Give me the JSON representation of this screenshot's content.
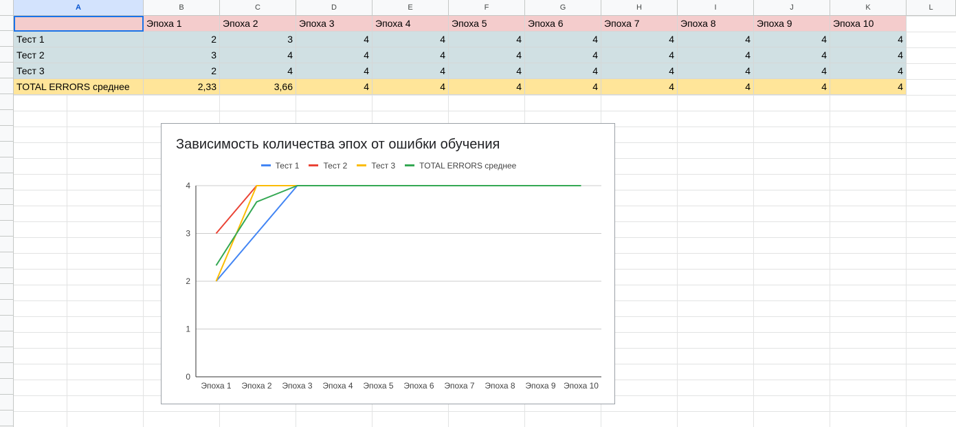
{
  "columns": [
    "A",
    "B",
    "C",
    "D",
    "E",
    "F",
    "G",
    "H",
    "I",
    "J",
    "K",
    "L"
  ],
  "selected_column": "A",
  "table": {
    "header": [
      "",
      "Эпоха 1",
      "Эпоха 2",
      "Эпоха 3",
      "Эпоха 4",
      "Эпоха 5",
      "Эпоха 6",
      "Эпоха 7",
      "Эпоха 8",
      "Эпоха 9",
      "Эпоха 10"
    ],
    "rows": [
      {
        "label": "Тест 1",
        "values": [
          "2",
          "3",
          "4",
          "4",
          "4",
          "4",
          "4",
          "4",
          "4",
          "4"
        ]
      },
      {
        "label": "Тест 2",
        "values": [
          "3",
          "4",
          "4",
          "4",
          "4",
          "4",
          "4",
          "4",
          "4",
          "4"
        ]
      },
      {
        "label": "Тест 3",
        "values": [
          "2",
          "4",
          "4",
          "4",
          "4",
          "4",
          "4",
          "4",
          "4",
          "4"
        ]
      }
    ],
    "total": {
      "label": "TOTAL ERRORS среднее",
      "values": [
        "2,33",
        "3,66",
        "4",
        "4",
        "4",
        "4",
        "4",
        "4",
        "4",
        "4"
      ]
    }
  },
  "chart_data": {
    "type": "line",
    "title": "Зависимость количества эпох от ошибки  обучения",
    "categories": [
      "Эпоха 1",
      "Эпоха 2",
      "Эпоха 3",
      "Эпоха 4",
      "Эпоха 5",
      "Эпоха 6",
      "Эпоха 7",
      "Эпоха 8",
      "Эпоха 9",
      "Эпоха 10"
    ],
    "series": [
      {
        "name": "Тест 1",
        "color": "#4285f4",
        "values": [
          2,
          3,
          4,
          4,
          4,
          4,
          4,
          4,
          4,
          4
        ]
      },
      {
        "name": "Тест 2",
        "color": "#ea4335",
        "values": [
          3,
          4,
          4,
          4,
          4,
          4,
          4,
          4,
          4,
          4
        ]
      },
      {
        "name": "Тест 3",
        "color": "#fbbc04",
        "values": [
          2,
          4,
          4,
          4,
          4,
          4,
          4,
          4,
          4,
          4
        ]
      },
      {
        "name": "TOTAL ERRORS среднее",
        "color": "#34a853",
        "values": [
          2.33,
          3.66,
          4,
          4,
          4,
          4,
          4,
          4,
          4,
          4
        ]
      }
    ],
    "ylim": [
      0,
      4
    ],
    "yticks": [
      0,
      1,
      2,
      3,
      4
    ],
    "grid": true,
    "legend": "top"
  }
}
